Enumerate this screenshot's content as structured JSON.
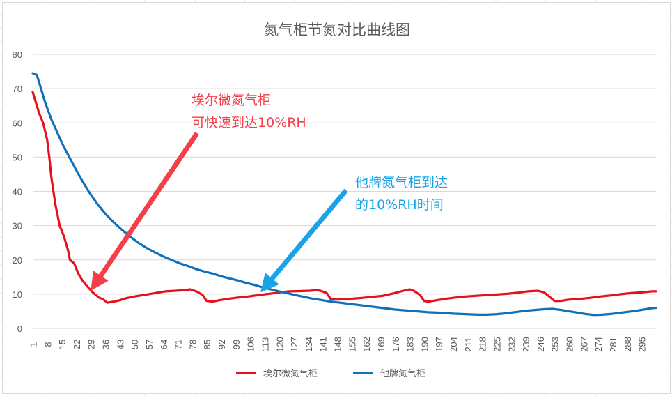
{
  "colors": {
    "series_red": "#e8101c",
    "series_blue": "#1070b8",
    "annotation_red": "#f2404a",
    "annotation_blue": "#1aa3e8",
    "gridline": "#d9d9d9",
    "text": "#595959"
  },
  "chart_data": {
    "type": "line",
    "title": "氮气柜节氮对比曲线图",
    "xlabel": "",
    "ylabel": "",
    "ylim": [
      0,
      80
    ],
    "yticks": [
      0,
      10,
      20,
      30,
      40,
      50,
      60,
      70,
      80
    ],
    "xlim": [
      1,
      302
    ],
    "xticks": [
      1,
      8,
      15,
      22,
      29,
      36,
      43,
      50,
      57,
      64,
      71,
      78,
      85,
      92,
      99,
      106,
      113,
      120,
      127,
      134,
      141,
      148,
      155,
      162,
      169,
      176,
      183,
      190,
      197,
      204,
      211,
      218,
      225,
      232,
      239,
      246,
      253,
      260,
      267,
      274,
      281,
      288,
      295
    ],
    "grid": "horizontal",
    "legend_position": "bottom",
    "series": [
      {
        "name": "埃尔微氮气柜",
        "color": "#e8101c",
        "points": [
          [
            1,
            69
          ],
          [
            4,
            63
          ],
          [
            6,
            60
          ],
          [
            8,
            55
          ],
          [
            9,
            50
          ],
          [
            10,
            44
          ],
          [
            12,
            36
          ],
          [
            14,
            30
          ],
          [
            16,
            27
          ],
          [
            18,
            23
          ],
          [
            19,
            20
          ],
          [
            21,
            19
          ],
          [
            23,
            16
          ],
          [
            25,
            14
          ],
          [
            27,
            12.5
          ],
          [
            30,
            10.5
          ],
          [
            33,
            9
          ],
          [
            35,
            8.5
          ],
          [
            37,
            7.5
          ],
          [
            40,
            7.8
          ],
          [
            43,
            8.2
          ],
          [
            46,
            8.8
          ],
          [
            50,
            9.3
          ],
          [
            55,
            9.8
          ],
          [
            60,
            10.3
          ],
          [
            65,
            10.8
          ],
          [
            70,
            11
          ],
          [
            75,
            11.2
          ],
          [
            77,
            11.4
          ],
          [
            80,
            10.8
          ],
          [
            83,
            9.8
          ],
          [
            85,
            8
          ],
          [
            88,
            7.8
          ],
          [
            91,
            8.2
          ],
          [
            95,
            8.6
          ],
          [
            100,
            9
          ],
          [
            105,
            9.3
          ],
          [
            110,
            9.7
          ],
          [
            115,
            10.1
          ],
          [
            120,
            10.5
          ],
          [
            125,
            10.8
          ],
          [
            130,
            10.9
          ],
          [
            135,
            11
          ],
          [
            138,
            11.2
          ],
          [
            140,
            11
          ],
          [
            143,
            10.3
          ],
          [
            145,
            8.5
          ],
          [
            148,
            8.4
          ],
          [
            152,
            8.5
          ],
          [
            156,
            8.7
          ],
          [
            160,
            8.9
          ],
          [
            165,
            9.2
          ],
          [
            170,
            9.5
          ],
          [
            175,
            10.2
          ],
          [
            180,
            11
          ],
          [
            183,
            11.4
          ],
          [
            185,
            11
          ],
          [
            188,
            9.8
          ],
          [
            190,
            8
          ],
          [
            192,
            7.8
          ],
          [
            196,
            8.2
          ],
          [
            200,
            8.6
          ],
          [
            205,
            9
          ],
          [
            210,
            9.3
          ],
          [
            215,
            9.5
          ],
          [
            220,
            9.7
          ],
          [
            225,
            9.9
          ],
          [
            230,
            10.1
          ],
          [
            235,
            10.4
          ],
          [
            240,
            10.8
          ],
          [
            245,
            11
          ],
          [
            248,
            10.5
          ],
          [
            250,
            9.5
          ],
          [
            253,
            8
          ],
          [
            256,
            8
          ],
          [
            259,
            8.3
          ],
          [
            262,
            8.5
          ],
          [
            265,
            8.6
          ],
          [
            270,
            8.9
          ],
          [
            275,
            9.3
          ],
          [
            280,
            9.6
          ],
          [
            285,
            10
          ],
          [
            290,
            10.3
          ],
          [
            295,
            10.5
          ],
          [
            300,
            10.8
          ],
          [
            302,
            10.8
          ]
        ]
      },
      {
        "name": "他牌氮气柜",
        "color": "#1070b8",
        "points": [
          [
            1,
            74.5
          ],
          [
            3,
            74
          ],
          [
            5,
            70
          ],
          [
            7,
            66
          ],
          [
            10,
            61
          ],
          [
            13,
            57
          ],
          [
            16,
            53
          ],
          [
            20,
            48.5
          ],
          [
            24,
            44
          ],
          [
            28,
            40
          ],
          [
            32,
            36.5
          ],
          [
            36,
            33.5
          ],
          [
            40,
            31
          ],
          [
            44,
            28.8
          ],
          [
            48,
            26.8
          ],
          [
            52,
            25
          ],
          [
            56,
            23.5
          ],
          [
            60,
            22.2
          ],
          [
            64,
            21
          ],
          [
            68,
            20
          ],
          [
            72,
            19
          ],
          [
            76,
            18.2
          ],
          [
            80,
            17.3
          ],
          [
            84,
            16.6
          ],
          [
            88,
            16
          ],
          [
            92,
            15.2
          ],
          [
            96,
            14.6
          ],
          [
            100,
            14
          ],
          [
            104,
            13.3
          ],
          [
            108,
            12.7
          ],
          [
            112,
            12
          ],
          [
            116,
            11.4
          ],
          [
            120,
            10.8
          ],
          [
            124,
            10.3
          ],
          [
            128,
            9.7
          ],
          [
            132,
            9.2
          ],
          [
            136,
            8.7
          ],
          [
            140,
            8.3
          ],
          [
            144,
            7.9
          ],
          [
            148,
            7.6
          ],
          [
            152,
            7.3
          ],
          [
            156,
            7
          ],
          [
            160,
            6.7
          ],
          [
            164,
            6.4
          ],
          [
            168,
            6.1
          ],
          [
            172,
            5.8
          ],
          [
            176,
            5.5
          ],
          [
            180,
            5.3
          ],
          [
            184,
            5.1
          ],
          [
            188,
            4.9
          ],
          [
            192,
            4.7
          ],
          [
            196,
            4.6
          ],
          [
            200,
            4.5
          ],
          [
            204,
            4.3
          ],
          [
            208,
            4.2
          ],
          [
            212,
            4.1
          ],
          [
            216,
            4
          ],
          [
            220,
            4
          ],
          [
            224,
            4.1
          ],
          [
            228,
            4.3
          ],
          [
            232,
            4.6
          ],
          [
            236,
            4.9
          ],
          [
            240,
            5.2
          ],
          [
            244,
            5.4
          ],
          [
            248,
            5.6
          ],
          [
            252,
            5.7
          ],
          [
            256,
            5.4
          ],
          [
            260,
            5
          ],
          [
            264,
            4.6
          ],
          [
            268,
            4.2
          ],
          [
            272,
            3.9
          ],
          [
            276,
            4
          ],
          [
            280,
            4.2
          ],
          [
            284,
            4.5
          ],
          [
            288,
            4.8
          ],
          [
            292,
            5.1
          ],
          [
            296,
            5.5
          ],
          [
            300,
            5.9
          ],
          [
            302,
            6
          ]
        ]
      }
    ],
    "annotations": [
      {
        "id": "red",
        "lines": [
          "埃尔微氮气柜",
          "可快速到达10%RH"
        ],
        "color": "#f2404a",
        "arrow_to": [
          29,
          11
        ]
      },
      {
        "id": "blue",
        "lines": [
          "他牌氮气柜到达",
          "的10%RH时间"
        ],
        "color": "#1aa3e8",
        "arrow_to": [
          111,
          10.5
        ]
      }
    ]
  }
}
